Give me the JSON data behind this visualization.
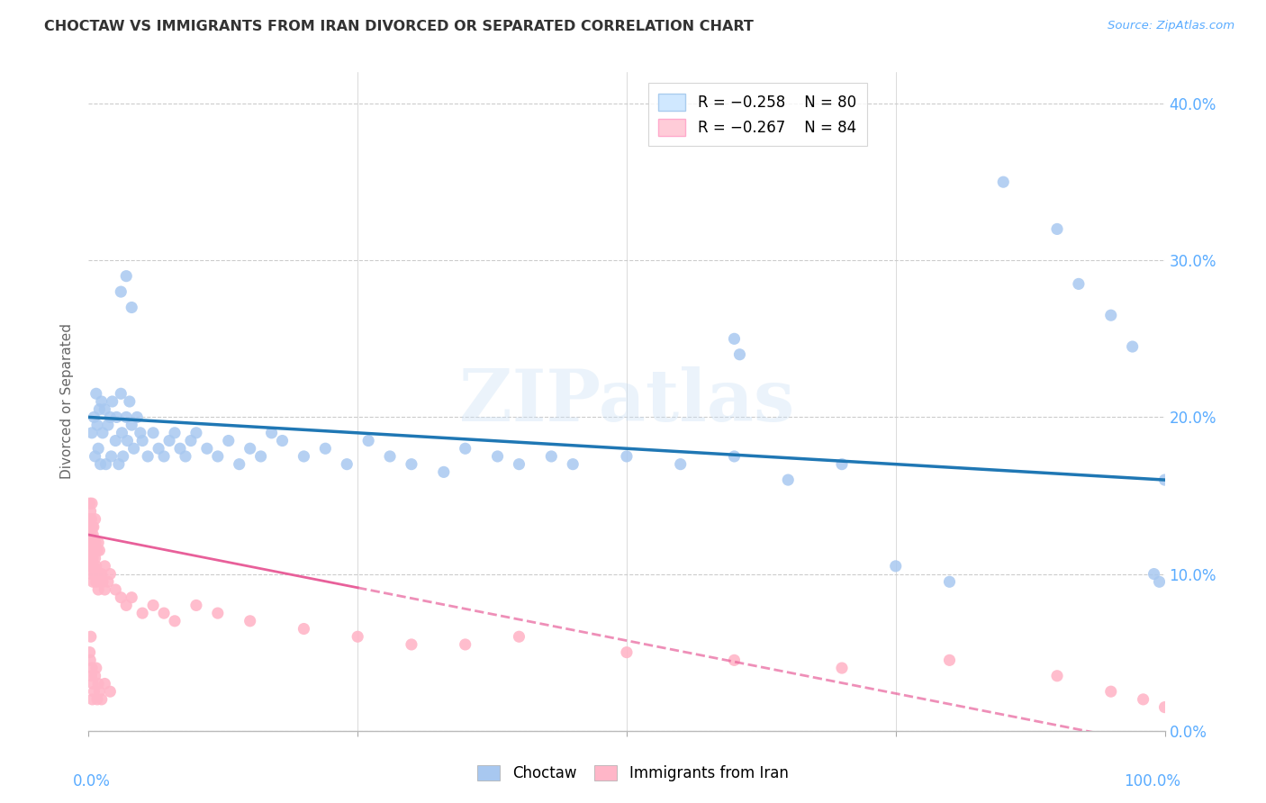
{
  "title": "CHOCTAW VS IMMIGRANTS FROM IRAN DIVORCED OR SEPARATED CORRELATION CHART",
  "source": "Source: ZipAtlas.com",
  "ylabel": "Divorced or Separated",
  "yticks": [
    0.0,
    10.0,
    20.0,
    30.0,
    40.0
  ],
  "xlim": [
    0.0,
    100.0
  ],
  "ylim": [
    0.0,
    42.0
  ],
  "choctaw_color": "#a8c8f0",
  "choctaw_line_color": "#1f77b4",
  "iran_color": "#ffb6c8",
  "iran_line_color": "#e8609a",
  "watermark_text": "ZIPatlas",
  "background_color": "#ffffff",
  "grid_color": "#cccccc",
  "tick_label_color": "#5aacff",
  "title_color": "#333333",
  "legend_box_color": "#d0e8ff",
  "legend_box_pink": "#ffccd8",
  "choctaw_x": [
    0.3,
    0.5,
    0.6,
    0.7,
    0.8,
    0.9,
    1.0,
    1.1,
    1.2,
    1.3,
    1.5,
    1.6,
    1.8,
    2.0,
    2.1,
    2.2,
    2.5,
    2.6,
    2.8,
    3.0,
    3.1,
    3.2,
    3.5,
    3.6,
    3.8,
    4.0,
    4.2,
    4.5,
    4.8,
    5.0,
    5.5,
    6.0,
    6.5,
    7.0,
    7.5,
    8.0,
    8.5,
    9.0,
    9.5,
    10.0,
    11.0,
    12.0,
    13.0,
    14.0,
    15.0,
    16.0,
    17.0,
    18.0,
    20.0,
    22.0,
    24.0,
    26.0,
    28.0,
    30.0,
    33.0,
    35.0,
    38.0,
    40.0,
    43.0,
    45.0,
    50.0,
    55.0,
    60.0,
    65.0,
    70.0,
    75.0,
    80.0,
    85.0,
    90.0,
    92.0,
    95.0,
    97.0,
    99.0,
    99.5,
    100.0,
    60.0,
    60.5,
    3.0,
    3.5,
    4.0
  ],
  "choctaw_y": [
    19.0,
    20.0,
    17.5,
    21.5,
    19.5,
    18.0,
    20.5,
    17.0,
    21.0,
    19.0,
    20.5,
    17.0,
    19.5,
    20.0,
    17.5,
    21.0,
    18.5,
    20.0,
    17.0,
    21.5,
    19.0,
    17.5,
    20.0,
    18.5,
    21.0,
    19.5,
    18.0,
    20.0,
    19.0,
    18.5,
    17.5,
    19.0,
    18.0,
    17.5,
    18.5,
    19.0,
    18.0,
    17.5,
    18.5,
    19.0,
    18.0,
    17.5,
    18.5,
    17.0,
    18.0,
    17.5,
    19.0,
    18.5,
    17.5,
    18.0,
    17.0,
    18.5,
    17.5,
    17.0,
    16.5,
    18.0,
    17.5,
    17.0,
    17.5,
    17.0,
    17.5,
    17.0,
    17.5,
    16.0,
    17.0,
    10.5,
    9.5,
    35.0,
    32.0,
    28.5,
    26.5,
    24.5,
    10.0,
    9.5,
    16.0,
    25.0,
    24.0,
    28.0,
    29.0,
    27.0
  ],
  "iran_x": [
    0.05,
    0.08,
    0.1,
    0.1,
    0.12,
    0.15,
    0.15,
    0.18,
    0.2,
    0.2,
    0.22,
    0.25,
    0.25,
    0.3,
    0.3,
    0.3,
    0.35,
    0.35,
    0.4,
    0.4,
    0.4,
    0.45,
    0.45,
    0.5,
    0.5,
    0.55,
    0.6,
    0.6,
    0.65,
    0.7,
    0.7,
    0.8,
    0.8,
    0.9,
    0.9,
    1.0,
    1.0,
    1.1,
    1.2,
    1.3,
    1.5,
    1.5,
    1.8,
    2.0,
    2.5,
    3.0,
    3.5,
    4.0,
    5.0,
    6.0,
    7.0,
    8.0,
    10.0,
    12.0,
    15.0,
    20.0,
    25.0,
    30.0,
    35.0,
    40.0,
    50.0,
    60.0,
    70.0,
    80.0,
    90.0,
    95.0,
    98.0,
    100.0,
    0.1,
    0.15,
    0.2,
    0.25,
    0.3,
    0.35,
    0.4,
    0.5,
    0.6,
    0.7,
    0.8,
    0.9,
    1.0,
    1.2,
    1.5,
    2.0
  ],
  "iran_y": [
    13.0,
    12.0,
    14.5,
    11.0,
    13.5,
    12.0,
    10.5,
    14.0,
    11.5,
    13.0,
    12.5,
    10.0,
    13.5,
    12.0,
    11.0,
    14.5,
    10.5,
    13.0,
    12.5,
    11.0,
    9.5,
    13.0,
    10.5,
    12.0,
    11.5,
    10.0,
    13.5,
    11.0,
    12.0,
    10.5,
    9.5,
    11.5,
    10.0,
    12.0,
    9.0,
    11.5,
    10.0,
    9.5,
    10.0,
    9.5,
    9.0,
    10.5,
    9.5,
    10.0,
    9.0,
    8.5,
    8.0,
    8.5,
    7.5,
    8.0,
    7.5,
    7.0,
    8.0,
    7.5,
    7.0,
    6.5,
    6.0,
    5.5,
    5.5,
    6.0,
    5.0,
    4.5,
    4.0,
    4.5,
    3.5,
    2.5,
    2.0,
    1.5,
    5.0,
    4.5,
    6.0,
    3.5,
    4.0,
    2.0,
    3.0,
    2.5,
    3.5,
    4.0,
    2.0,
    3.0,
    2.5,
    2.0,
    3.0,
    2.5
  ],
  "choctaw_trend_start_y": 20.0,
  "choctaw_trend_end_y": 16.0,
  "iran_trend_start_y": 12.5,
  "iran_trend_end_y": -1.0,
  "iran_solid_end_x": 25.0
}
